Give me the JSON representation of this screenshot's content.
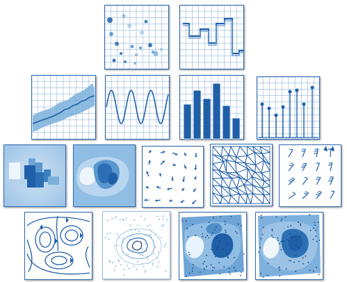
{
  "colors": {
    "primary": "#1f5fa8",
    "mid": "#4f8fc9",
    "light": "#a9c9e6",
    "pale": "#d8e7f4",
    "grid": "#7aa6d6",
    "frame": "#2d6cb3"
  },
  "gallery": {
    "tiles": [
      {
        "name": "scatter-plot-thumbnail",
        "kind": "scatter"
      },
      {
        "name": "step-plot-thumbnail",
        "kind": "step"
      },
      {
        "name": "fill-between-thumbnail",
        "kind": "fill-between"
      },
      {
        "name": "line-plot-thumbnail",
        "kind": "sine"
      },
      {
        "name": "bar-chart-thumbnail",
        "kind": "bar"
      },
      {
        "name": "stem-plot-thumbnail",
        "kind": "stem"
      },
      {
        "name": "imshow-thumbnail",
        "kind": "imshow"
      },
      {
        "name": "contourf-thumbnail",
        "kind": "contourf"
      },
      {
        "name": "quiver-thumbnail",
        "kind": "quiver"
      },
      {
        "name": "triplot-thumbnail",
        "kind": "triplot"
      },
      {
        "name": "barbs-thumbnail",
        "kind": "barbs"
      },
      {
        "name": "streamplot-thumbnail",
        "kind": "streamplot"
      },
      {
        "name": "contour-lines-thumbnail",
        "kind": "contour"
      },
      {
        "name": "tricontourf-thumbnail",
        "kind": "tricontourf"
      },
      {
        "name": "tripcolor-thumbnail",
        "kind": "tripcolor"
      }
    ]
  }
}
